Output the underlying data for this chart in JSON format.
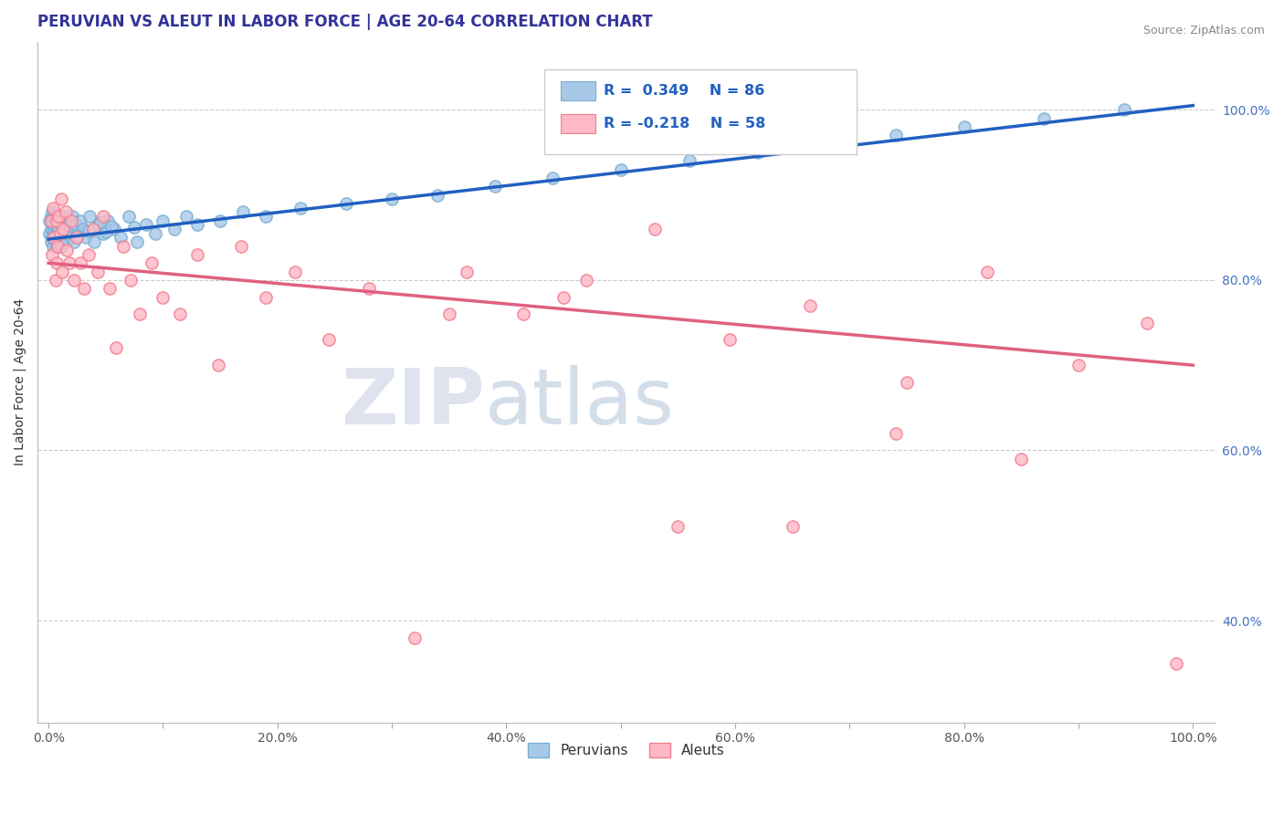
{
  "title": "PERUVIAN VS ALEUT IN LABOR FORCE | AGE 20-64 CORRELATION CHART",
  "source_text": "Source: ZipAtlas.com",
  "ylabel": "In Labor Force | Age 20-64",
  "xlim": [
    -0.01,
    1.02
  ],
  "ylim": [
    0.28,
    1.08
  ],
  "xticklabels": [
    "0.0%",
    "",
    "20.0%",
    "",
    "40.0%",
    "",
    "60.0%",
    "",
    "80.0%",
    "",
    "100.0%"
  ],
  "xticks": [
    0.0,
    0.1,
    0.2,
    0.3,
    0.4,
    0.5,
    0.6,
    0.7,
    0.8,
    0.9,
    1.0
  ],
  "yticks_right": [
    0.4,
    0.6,
    0.8,
    1.0
  ],
  "ytick_right_labels": [
    "40.0%",
    "60.0%",
    "80.0%",
    "100.0%"
  ],
  "blue_color": "#a8c8e8",
  "blue_edge_color": "#7aafd4",
  "pink_color": "#ffb8c6",
  "pink_edge_color": "#f08090",
  "blue_line_color": "#2060c0",
  "pink_line_color": "#e06080",
  "legend_label_blue": "Peruvians",
  "legend_label_pink": "Aleuts",
  "watermark_zip": "ZIP",
  "watermark_atlas": "atlas",
  "title_color": "#333399",
  "tick_color_right": "#4472c4",
  "blue_scatter_x": [
    0.001,
    0.001,
    0.002,
    0.002,
    0.002,
    0.003,
    0.003,
    0.003,
    0.004,
    0.004,
    0.004,
    0.005,
    0.005,
    0.005,
    0.005,
    0.006,
    0.006,
    0.006,
    0.007,
    0.007,
    0.007,
    0.008,
    0.008,
    0.008,
    0.009,
    0.009,
    0.01,
    0.01,
    0.011,
    0.011,
    0.012,
    0.012,
    0.013,
    0.014,
    0.015,
    0.015,
    0.016,
    0.017,
    0.018,
    0.019,
    0.02,
    0.021,
    0.022,
    0.024,
    0.026,
    0.028,
    0.03,
    0.033,
    0.036,
    0.04,
    0.044,
    0.048,
    0.052,
    0.057,
    0.063,
    0.07,
    0.077,
    0.085,
    0.093,
    0.1,
    0.11,
    0.12,
    0.13,
    0.15,
    0.17,
    0.19,
    0.22,
    0.26,
    0.3,
    0.34,
    0.39,
    0.44,
    0.5,
    0.56,
    0.62,
    0.68,
    0.74,
    0.8,
    0.87,
    0.94,
    0.05,
    0.075,
    0.025,
    0.035,
    0.055,
    0.045
  ],
  "blue_scatter_y": [
    0.855,
    0.87,
    0.86,
    0.875,
    0.845,
    0.865,
    0.85,
    0.88,
    0.855,
    0.87,
    0.84,
    0.86,
    0.875,
    0.85,
    0.865,
    0.845,
    0.87,
    0.855,
    0.86,
    0.875,
    0.84,
    0.865,
    0.855,
    0.87,
    0.845,
    0.86,
    0.875,
    0.85,
    0.865,
    0.84,
    0.855,
    0.87,
    0.86,
    0.85,
    0.875,
    0.845,
    0.865,
    0.855,
    0.87,
    0.86,
    0.85,
    0.875,
    0.845,
    0.865,
    0.855,
    0.87,
    0.86,
    0.85,
    0.875,
    0.845,
    0.865,
    0.855,
    0.87,
    0.86,
    0.85,
    0.875,
    0.845,
    0.865,
    0.855,
    0.87,
    0.86,
    0.875,
    0.865,
    0.87,
    0.88,
    0.875,
    0.885,
    0.89,
    0.895,
    0.9,
    0.91,
    0.92,
    0.93,
    0.94,
    0.95,
    0.96,
    0.97,
    0.98,
    0.99,
    1.0,
    0.857,
    0.862,
    0.852,
    0.858,
    0.863,
    0.868
  ],
  "pink_scatter_x": [
    0.002,
    0.003,
    0.004,
    0.005,
    0.006,
    0.007,
    0.007,
    0.008,
    0.009,
    0.01,
    0.011,
    0.012,
    0.013,
    0.015,
    0.016,
    0.018,
    0.02,
    0.022,
    0.025,
    0.028,
    0.031,
    0.035,
    0.039,
    0.043,
    0.048,
    0.053,
    0.059,
    0.065,
    0.072,
    0.08,
    0.09,
    0.1,
    0.115,
    0.13,
    0.148,
    0.168,
    0.19,
    0.215,
    0.245,
    0.28,
    0.32,
    0.365,
    0.415,
    0.47,
    0.53,
    0.595,
    0.665,
    0.74,
    0.82,
    0.9,
    0.96,
    0.985,
    0.35,
    0.45,
    0.55,
    0.65,
    0.75,
    0.85
  ],
  "pink_scatter_y": [
    0.87,
    0.83,
    0.885,
    0.85,
    0.8,
    0.87,
    0.82,
    0.84,
    0.875,
    0.855,
    0.895,
    0.81,
    0.86,
    0.88,
    0.835,
    0.82,
    0.87,
    0.8,
    0.85,
    0.82,
    0.79,
    0.83,
    0.86,
    0.81,
    0.875,
    0.79,
    0.72,
    0.84,
    0.8,
    0.76,
    0.82,
    0.78,
    0.76,
    0.83,
    0.7,
    0.84,
    0.78,
    0.81,
    0.73,
    0.79,
    0.38,
    0.81,
    0.76,
    0.8,
    0.86,
    0.73,
    0.77,
    0.62,
    0.81,
    0.7,
    0.75,
    0.35,
    0.76,
    0.78,
    0.51,
    0.51,
    0.68,
    0.59
  ],
  "blue_trendline_x": [
    0.0,
    1.0
  ],
  "blue_trendline_y": [
    0.848,
    1.005
  ],
  "pink_trendline_x": [
    0.0,
    1.0
  ],
  "pink_trendline_y": [
    0.82,
    0.7
  ],
  "title_fontsize": 12,
  "axis_fontsize": 10,
  "tick_fontsize": 10
}
